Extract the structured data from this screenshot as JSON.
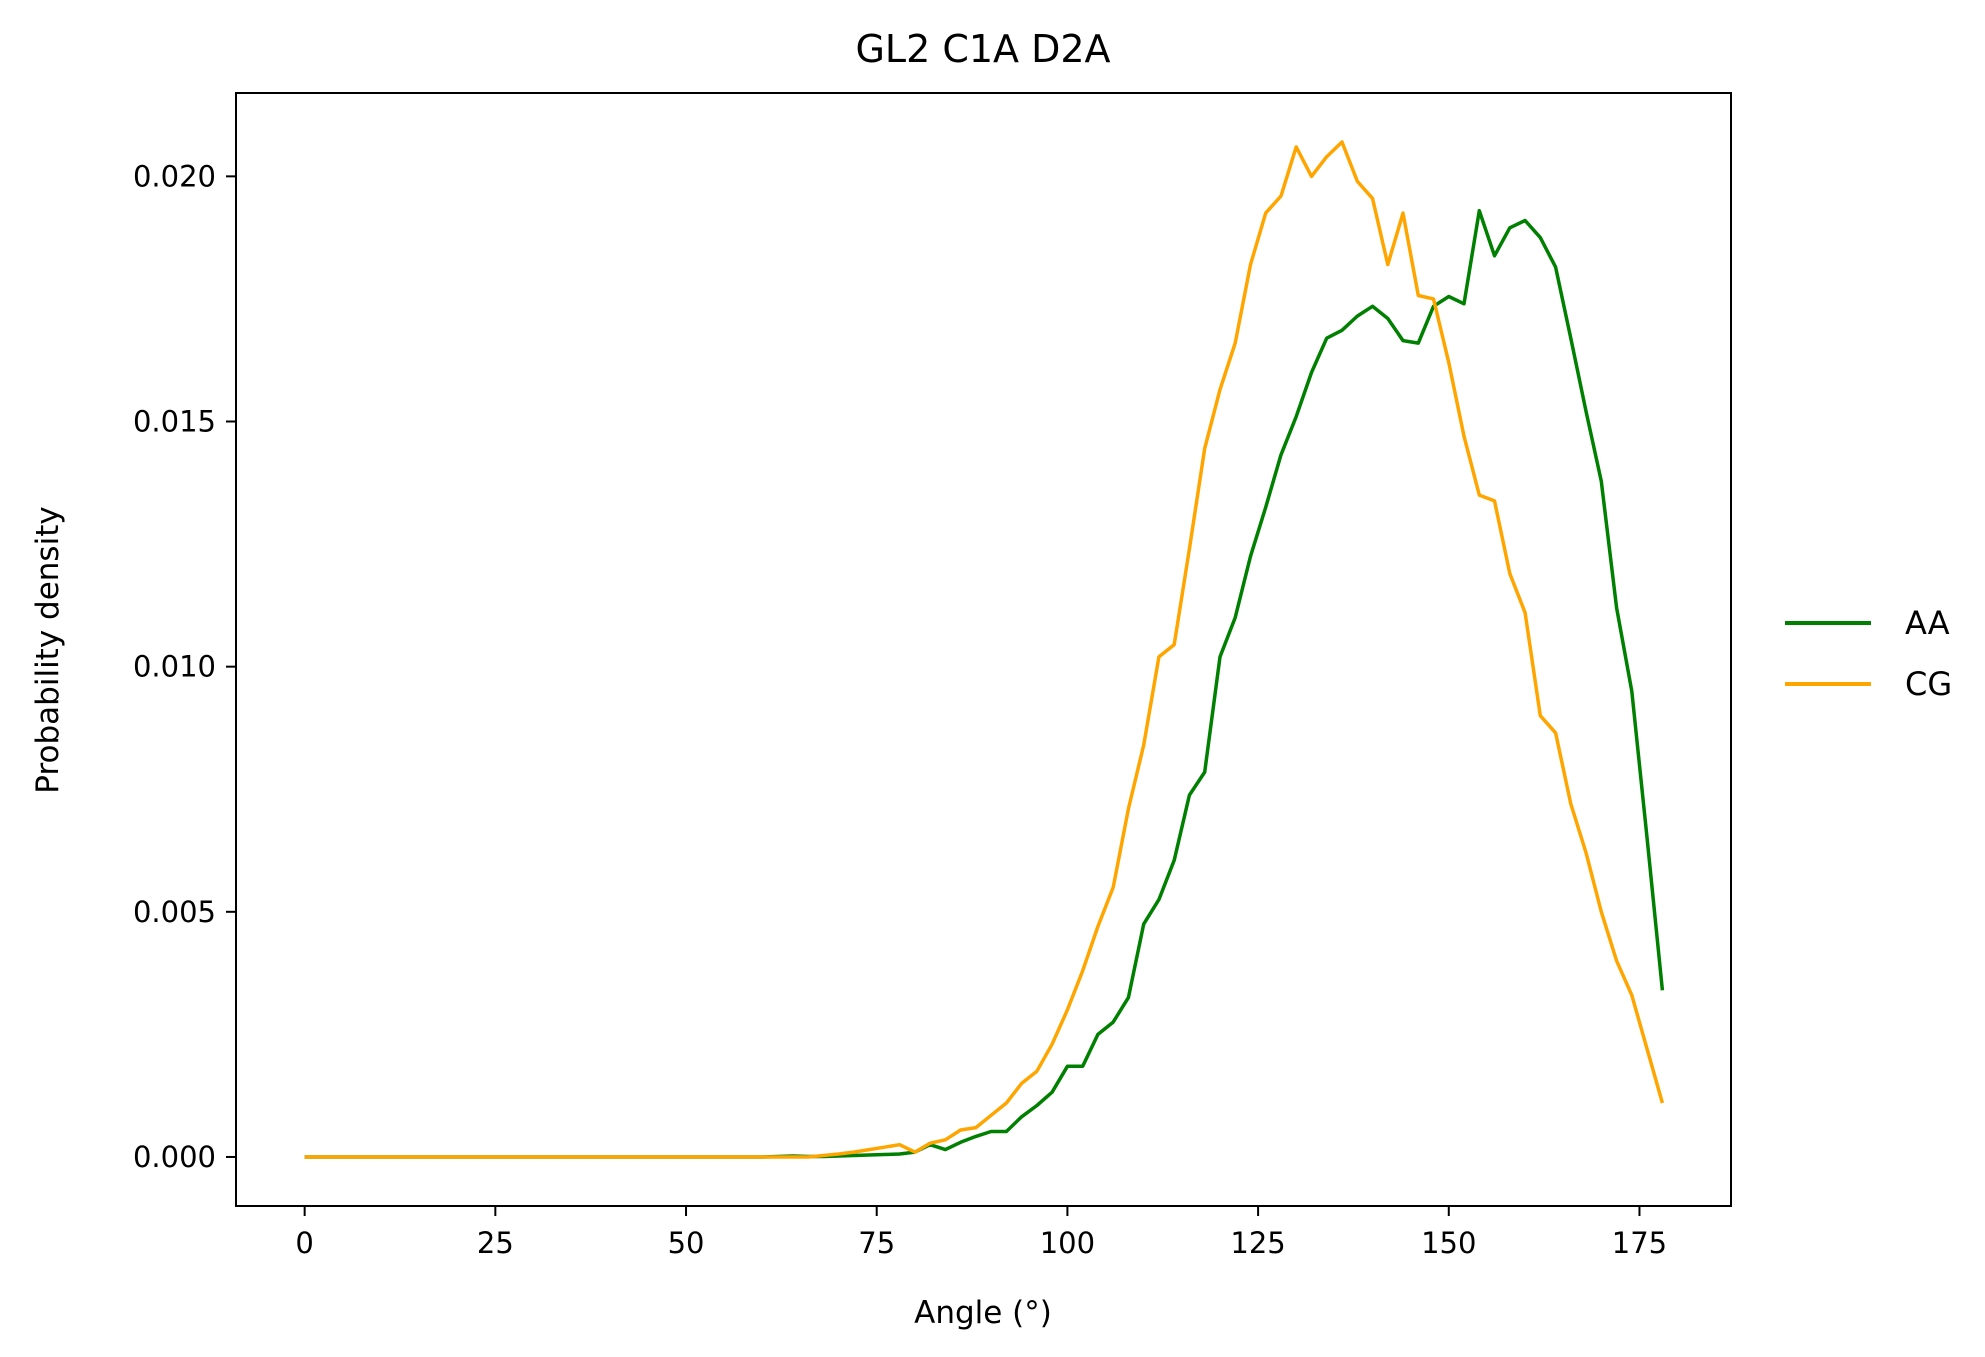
{
  "chart_data": {
    "type": "line",
    "title": "GL2 C1A D2A",
    "xlabel": "Angle (°)",
    "ylabel": "Probability density",
    "xlim": [
      -9,
      187
    ],
    "ylim": [
      -0.001,
      0.0217
    ],
    "xticks": [
      0,
      25,
      50,
      75,
      100,
      125,
      150,
      175
    ],
    "xtick_labels": [
      "0",
      "25",
      "50",
      "75",
      "100",
      "125",
      "150",
      "175"
    ],
    "yticks": [
      0.0,
      0.005,
      0.01,
      0.015,
      0.02
    ],
    "ytick_labels": [
      "0.000",
      "0.005",
      "0.010",
      "0.015",
      "0.020"
    ],
    "grid": false,
    "legend_position": "right",
    "series": [
      {
        "name": "AA",
        "color": "#008000",
        "x": [
          0,
          60,
          62,
          64,
          66,
          68,
          70,
          72,
          74,
          76,
          78,
          80,
          82,
          84,
          86,
          88,
          90,
          92,
          94,
          96,
          98,
          100,
          102,
          104,
          106,
          108,
          110,
          112,
          114,
          116,
          118,
          120,
          122,
          124,
          126,
          128,
          130,
          132,
          134,
          136,
          138,
          140,
          142,
          144,
          146,
          148,
          150,
          152,
          154,
          156,
          158,
          160,
          162,
          164,
          166,
          168,
          170,
          172,
          174,
          176,
          178
        ],
        "y": [
          0,
          0,
          1e-05,
          2e-05,
          1e-05,
          1e-05,
          2e-05,
          3e-05,
          4e-05,
          5e-05,
          6e-05,
          0.0001,
          0.00025,
          0.00015,
          0.0003,
          0.00042,
          0.00052,
          0.00052,
          0.00082,
          0.00105,
          0.00132,
          0.00185,
          0.00185,
          0.0025,
          0.00275,
          0.00325,
          0.00475,
          0.00525,
          0.00605,
          0.00738,
          0.00785,
          0.0102,
          0.011,
          0.01225,
          0.01325,
          0.01432,
          0.0151,
          0.016,
          0.0167,
          0.01686,
          0.01715,
          0.01735,
          0.0171,
          0.01665,
          0.0166,
          0.01735,
          0.01755,
          0.0174,
          0.0193,
          0.01838,
          0.01895,
          0.0191,
          0.01875,
          0.01815,
          0.0167,
          0.0152,
          0.01378,
          0.0112,
          0.0095,
          0.0065,
          0.0034
        ]
      },
      {
        "name": "CG",
        "color": "#ffa500",
        "x": [
          0,
          60,
          62,
          64,
          66,
          68,
          70,
          72,
          74,
          76,
          78,
          80,
          82,
          84,
          86,
          88,
          90,
          92,
          94,
          96,
          98,
          100,
          102,
          104,
          106,
          108,
          110,
          112,
          114,
          116,
          118,
          120,
          122,
          124,
          126,
          128,
          130,
          132,
          134,
          136,
          138,
          140,
          142,
          144,
          146,
          148,
          150,
          152,
          154,
          156,
          158,
          160,
          162,
          164,
          166,
          168,
          170,
          172,
          174,
          176,
          178
        ],
        "y": [
          0,
          0,
          0,
          0,
          0,
          3e-05,
          6e-05,
          0.0001,
          0.00015,
          0.0002,
          0.00025,
          0.0001,
          0.00028,
          0.00035,
          0.00055,
          0.0006,
          0.00085,
          0.0011,
          0.0015,
          0.00175,
          0.0023,
          0.003,
          0.0038,
          0.0047,
          0.0055,
          0.0071,
          0.0084,
          0.0102,
          0.01045,
          0.0124,
          0.01445,
          0.01565,
          0.0166,
          0.0182,
          0.01925,
          0.0196,
          0.0206,
          0.02,
          0.0204,
          0.0207,
          0.0199,
          0.01955,
          0.0182,
          0.01925,
          0.01757,
          0.0175,
          0.0162,
          0.0147,
          0.0135,
          0.01338,
          0.0119,
          0.0111,
          0.009,
          0.00865,
          0.0072,
          0.0062,
          0.005,
          0.004,
          0.0033,
          0.0022,
          0.0011
        ]
      }
    ]
  }
}
